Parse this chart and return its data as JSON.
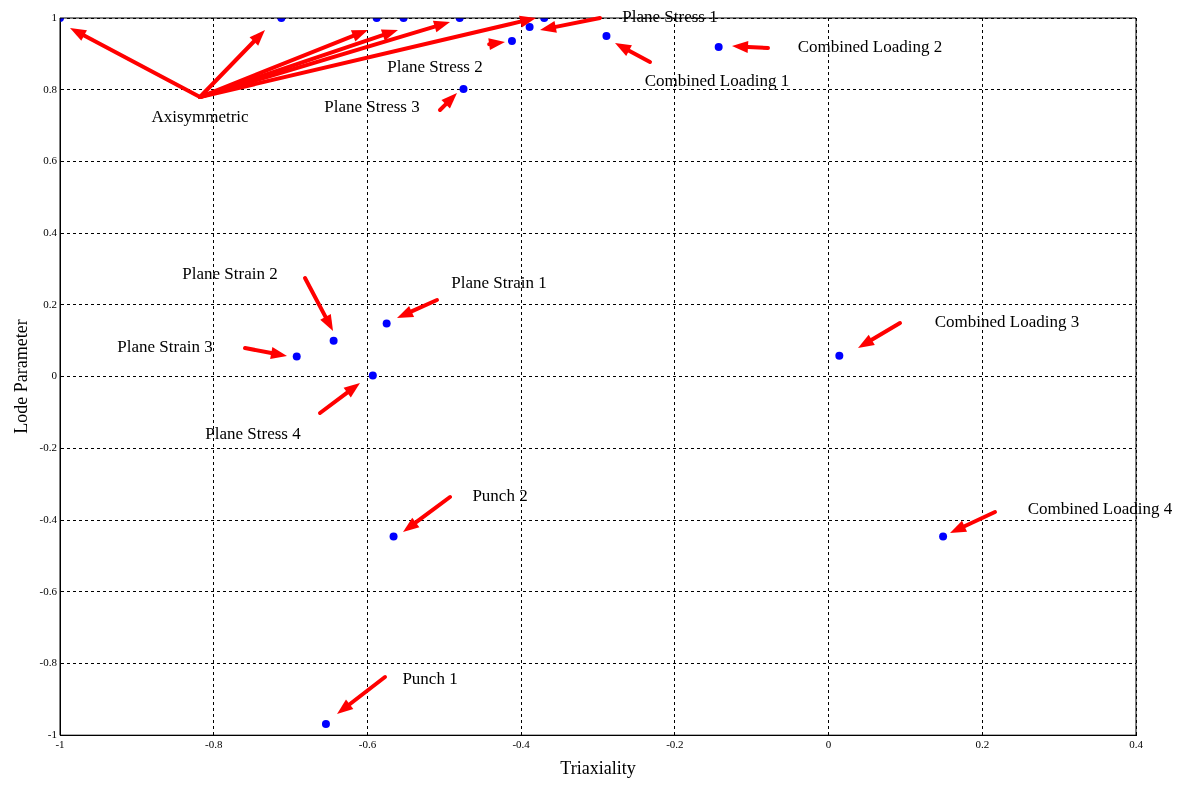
{
  "chart_data": {
    "type": "scatter",
    "xlabel": "Triaxiality",
    "ylabel": "Lode Parameter",
    "x": [
      -1,
      -0.712,
      -0.588,
      -0.553,
      -0.48,
      -0.37,
      -0.389,
      -0.412,
      -0.475,
      -0.289,
      -0.143,
      -0.575,
      -0.644,
      -0.692,
      -0.593,
      0.014,
      -0.566,
      0.149,
      -0.654
    ],
    "series": [
      {
        "color": "#0000ff",
        "values": [
          1,
          1,
          1,
          1,
          1,
          1,
          0.975,
          0.936,
          0.802,
          0.95,
          0.919,
          0.148,
          0.1,
          0.056,
          0.003,
          0.058,
          -0.446,
          -0.446,
          -0.969
        ]
      }
    ],
    "marker": "circle",
    "grid": true,
    "xlim": [
      -1,
      0.4
    ],
    "xticks": [
      -1,
      -0.8,
      -0.6,
      -0.4,
      -0.2,
      0,
      0.2,
      0.4
    ],
    "ylim": [
      -1,
      1
    ],
    "yticks": [
      -1,
      -0.8,
      -0.6,
      -0.4,
      -0.2,
      0,
      0.2,
      0.4,
      0.6,
      0.8,
      1
    ],
    "annotations": [
      "Axisymmetric",
      "Plane Stress 1",
      "Plane Stress 2",
      "Plane Stress 3",
      "Combined Loading 1",
      "Combined Loading 2",
      "Plane Strain 1",
      "Plane Strain 2",
      "Plane Strain 3",
      "Plane Stress 4",
      "Combined Loading 3",
      "Punch 2",
      "Combined Loading 4",
      "Punch 1"
    ]
  }
}
